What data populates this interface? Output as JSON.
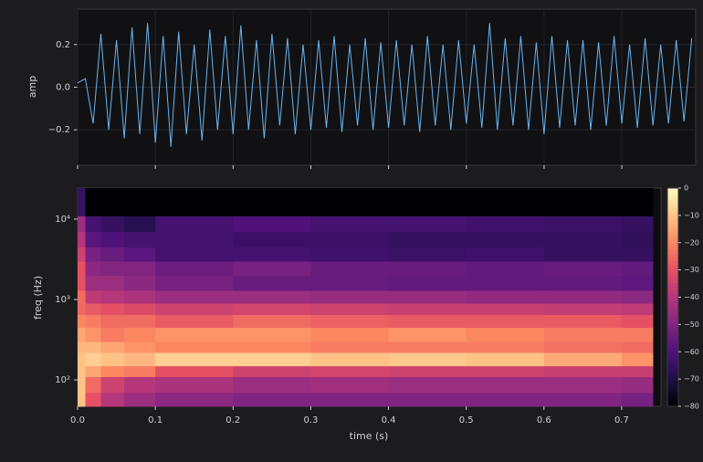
{
  "chart_data": [
    {
      "type": "line",
      "ylabel": "amp",
      "color": "#6ab4f0",
      "grid": true,
      "x": [
        0,
        0.01,
        0.02,
        0.03,
        0.04,
        0.05,
        0.06,
        0.07,
        0.08,
        0.09,
        0.1,
        0.11,
        0.12,
        0.13,
        0.14,
        0.15,
        0.16,
        0.17,
        0.18,
        0.19,
        0.2,
        0.21,
        0.22,
        0.23,
        0.24,
        0.25,
        0.26,
        0.27,
        0.28,
        0.29,
        0.3,
        0.31,
        0.32,
        0.33,
        0.34,
        0.35,
        0.36,
        0.37,
        0.38,
        0.39,
        0.4,
        0.41,
        0.42,
        0.43,
        0.44,
        0.45,
        0.46,
        0.47,
        0.48,
        0.49,
        0.5,
        0.51,
        0.52,
        0.53,
        0.54,
        0.55,
        0.56,
        0.57,
        0.58,
        0.59,
        0.6,
        0.61,
        0.62,
        0.63,
        0.64,
        0.65,
        0.66,
        0.67,
        0.68,
        0.69,
        0.7,
        0.71,
        0.72,
        0.73,
        0.74,
        0.75,
        0.76,
        0.77,
        0.78,
        0.79
      ],
      "values": [
        0.02,
        0.04,
        -0.17,
        0.25,
        -0.2,
        0.22,
        -0.24,
        0.28,
        -0.22,
        0.3,
        -0.26,
        0.24,
        -0.28,
        0.26,
        -0.22,
        0.2,
        -0.25,
        0.27,
        -0.2,
        0.24,
        -0.22,
        0.29,
        -0.2,
        0.22,
        -0.24,
        0.25,
        -0.18,
        0.23,
        -0.22,
        0.2,
        -0.2,
        0.22,
        -0.19,
        0.24,
        -0.21,
        0.2,
        -0.18,
        0.23,
        -0.2,
        0.21,
        -0.19,
        0.22,
        -0.18,
        0.2,
        -0.21,
        0.24,
        -0.18,
        0.2,
        -0.2,
        0.22,
        -0.17,
        0.2,
        -0.19,
        0.3,
        -0.2,
        0.23,
        -0.18,
        0.24,
        -0.2,
        0.21,
        -0.22,
        0.24,
        -0.19,
        0.22,
        -0.18,
        0.22,
        -0.2,
        0.21,
        -0.18,
        0.24,
        -0.17,
        0.2,
        -0.19,
        0.23,
        -0.18,
        0.2,
        -0.17,
        0.22,
        -0.16,
        0.23
      ],
      "xlim": [
        0,
        0.795
      ],
      "ylim": [
        -0.366,
        0.366
      ],
      "xticks": [
        0,
        0.1,
        0.2,
        0.3,
        0.4,
        0.5,
        0.6,
        0.7
      ],
      "yticks": [
        {
          "value": -0.2,
          "label": "−0.2"
        },
        {
          "value": 0,
          "label": "0.0"
        },
        0.2
      ]
    },
    {
      "type": "heatmap",
      "xlabel": "time (s)",
      "ylabel": "freq (Hz)",
      "log_y": true,
      "colormap": "magma",
      "x_edges": [
        0,
        0.01,
        0.03,
        0.06,
        0.1,
        0.2,
        0.3,
        0.4,
        0.5,
        0.6,
        0.7,
        0.74
      ],
      "y_edges": [
        47,
        70,
        110,
        150,
        220,
        300,
        450,
        650,
        900,
        1300,
        2000,
        3000,
        4500,
        7000,
        11000,
        24300
      ],
      "z": [
        [
          -10,
          -30,
          -40,
          -45,
          -48,
          -50,
          -50,
          -50,
          -50,
          -50,
          -52
        ],
        [
          -10,
          -25,
          -35,
          -40,
          -42,
          -45,
          -44,
          -45,
          -45,
          -45,
          -46
        ],
        [
          -10,
          -15,
          -20,
          -22,
          -30,
          -35,
          -34,
          -35,
          -35,
          -36,
          -36
        ],
        [
          -10,
          -8,
          -10,
          -12,
          -8,
          -8,
          -10,
          -9,
          -10,
          -14,
          -18
        ],
        [
          -12,
          -12,
          -15,
          -18,
          -20,
          -20,
          -22,
          -22,
          -22,
          -24,
          -25
        ],
        [
          -15,
          -18,
          -22,
          -20,
          -18,
          -18,
          -20,
          -18,
          -20,
          -22,
          -22
        ],
        [
          -20,
          -22,
          -25,
          -25,
          -28,
          -25,
          -27,
          -28,
          -28,
          -28,
          -30
        ],
        [
          -25,
          -28,
          -30,
          -32,
          -35,
          -34,
          -35,
          -36,
          -36,
          -37,
          -38
        ],
        [
          -25,
          -38,
          -40,
          -42,
          -45,
          -45,
          -46,
          -46,
          -47,
          -47,
          -48
        ],
        [
          -30,
          -45,
          -45,
          -48,
          -52,
          -55,
          -55,
          -56,
          -56,
          -56,
          -57
        ],
        [
          -30,
          -48,
          -50,
          -50,
          -54,
          -52,
          -55,
          -55,
          -56,
          -55,
          -56
        ],
        [
          -35,
          -52,
          -55,
          -58,
          -62,
          -62,
          -63,
          -64,
          -63,
          -65,
          -65
        ],
        [
          -40,
          -58,
          -60,
          -62,
          -62,
          -64,
          -64,
          -65,
          -65,
          -65,
          -66
        ],
        [
          -45,
          -62,
          -65,
          -68,
          -62,
          -60,
          -62,
          -62,
          -63,
          -64,
          -65
        ],
        [
          -65,
          -80,
          -80,
          -80,
          -80,
          -80,
          -80,
          -80,
          -80,
          -80,
          -80
        ]
      ],
      "xlim": [
        0,
        0.7506
      ],
      "ylim": [
        47,
        24300
      ],
      "xticks": [
        {
          "value": 0,
          "label": "0.0"
        },
        0.1,
        0.2,
        0.3,
        0.4,
        0.5,
        0.6,
        0.7
      ],
      "yticks": [
        {
          "value": 100,
          "label": "10²"
        },
        {
          "value": 1000,
          "label": "10³"
        },
        {
          "value": 10000,
          "label": "10⁴"
        }
      ],
      "clim": [
        -80,
        0
      ],
      "cticks": [
        0,
        {
          "value": -10,
          "label": "−10"
        },
        {
          "value": -20,
          "label": "−20"
        },
        {
          "value": -30,
          "label": "−30"
        },
        {
          "value": -40,
          "label": "−40"
        },
        {
          "value": -50,
          "label": "−50"
        },
        {
          "value": -60,
          "label": "−60"
        },
        {
          "value": -70,
          "label": "−70"
        },
        {
          "value": -80,
          "label": "−80"
        }
      ]
    }
  ]
}
